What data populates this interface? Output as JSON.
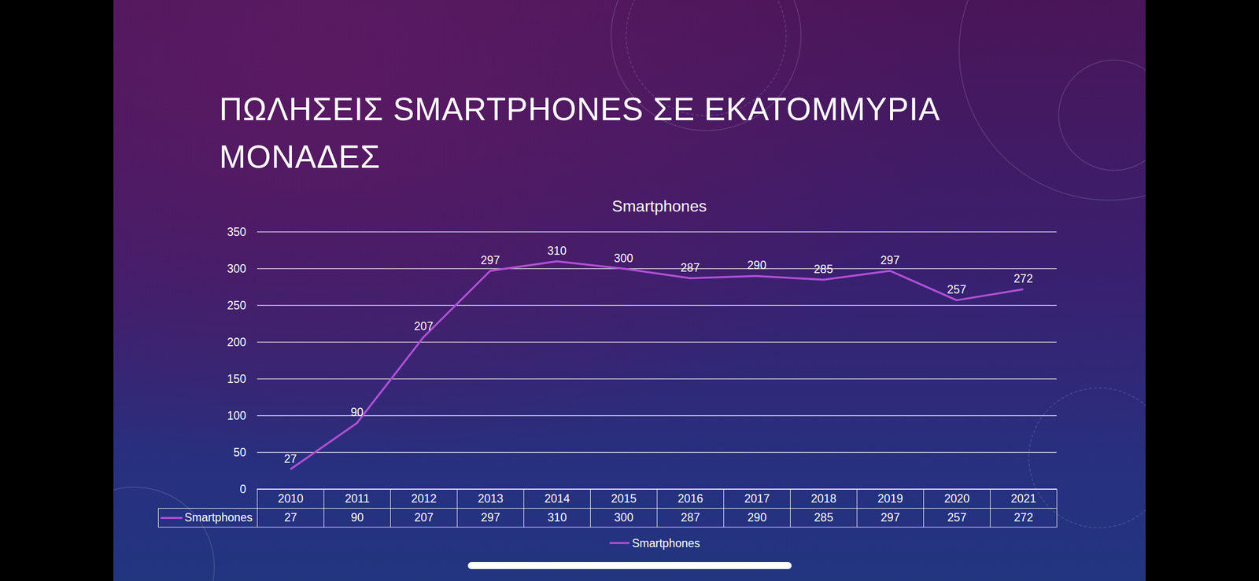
{
  "heading": "ΠΩΛΗΣΕΙΣ SMARTPHONES ΣΕ ΕΚΑΤΟΜΜΥΡΙΑ ΜΟΝΑΔΕΣ",
  "chart_data": {
    "type": "line",
    "title": "Smartphones",
    "categories": [
      "2010",
      "2011",
      "2012",
      "2013",
      "2014",
      "2015",
      "2016",
      "2017",
      "2018",
      "2019",
      "2020",
      "2021"
    ],
    "series": [
      {
        "name": "Smartphones",
        "color": "#b04fd6",
        "values": [
          27,
          90,
          207,
          297,
          310,
          300,
          287,
          290,
          285,
          297,
          257,
          272
        ]
      }
    ],
    "ylim": [
      0,
      350
    ],
    "yticks": [
      0,
      50,
      100,
      150,
      200,
      250,
      300,
      350
    ],
    "grid": true,
    "data_labels": true,
    "legend": "bottom"
  }
}
